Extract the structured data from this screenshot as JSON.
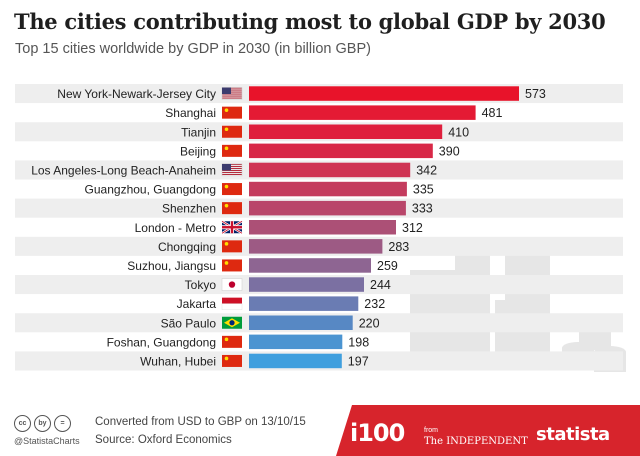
{
  "header": {
    "title": "The cities contributing most to global GDP by 2030",
    "subtitle": "Top 15 cities worldwide by GDP in 2030 (in billion GBP)"
  },
  "chart_data": {
    "type": "bar",
    "orientation": "horizontal",
    "title": "The cities contributing most to global GDP by 2030",
    "subtitle": "Top 15 cities worldwide by GDP in 2030 (in billion GBP)",
    "categories": [
      "New York-Newark-Jersey City",
      "Shanghai",
      "Tianjin",
      "Beijing",
      "Los Angeles-Long Beach-Anaheim",
      "Guangzhou, Guangdong",
      "Shenzhen",
      "London - Metro",
      "Chongqing",
      "Suzhou, Jiangsu",
      "Tokyo",
      "Jakarta",
      "São Paulo",
      "Foshan, Guangdong",
      "Wuhan, Hubei"
    ],
    "values": [
      573,
      481,
      410,
      390,
      342,
      335,
      333,
      312,
      283,
      259,
      244,
      232,
      220,
      198,
      197
    ],
    "flags": [
      "us",
      "cn",
      "cn",
      "cn",
      "us",
      "cn",
      "cn",
      "uk",
      "cn",
      "cn",
      "jp",
      "id",
      "br",
      "cn",
      "cn"
    ],
    "bar_colors": [
      "#e8132a",
      "#e41a34",
      "#df1f3d",
      "#d82847",
      "#cf3353",
      "#c43c5e",
      "#b9466a",
      "#ac5076",
      "#9d5a84",
      "#8e6592",
      "#7b70a2",
      "#6a7cb3",
      "#5788c4",
      "#4b94d1",
      "#3f9fde"
    ],
    "xlim": [
      0,
      573
    ],
    "grid": false,
    "legend": "none"
  },
  "footer": {
    "note": "Converted from USD to GBP on 13/10/15",
    "source": "Source: Oxford Economics",
    "handle": "@StatistaCharts",
    "cc_icons": [
      "cc",
      "by",
      "="
    ],
    "brand_i100": "i100",
    "brand_from": "from",
    "brand_independent": "The INDEPENDENT",
    "brand_statista": "statista"
  },
  "colors": {
    "footer_red": "#d7242c",
    "row_stripe": "#eeeeee",
    "buildings": "#e6e6e6"
  }
}
